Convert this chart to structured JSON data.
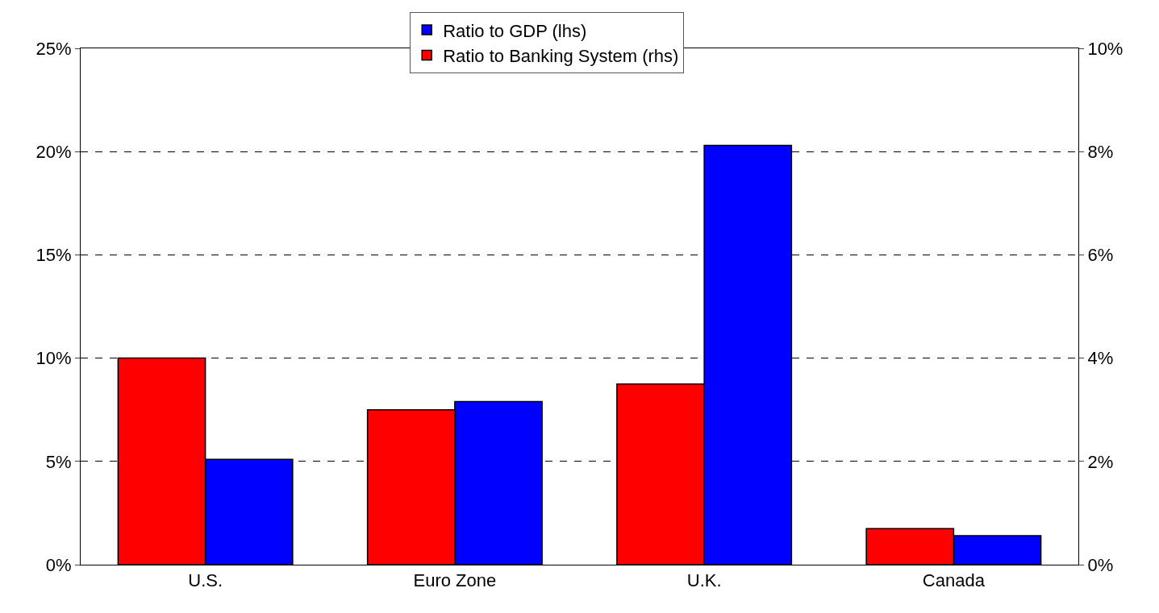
{
  "chart_data": {
    "type": "bar",
    "categories": [
      "U.S.",
      "Euro Zone",
      "U.K.",
      "Canada"
    ],
    "series": [
      {
        "name": "Ratio to GDP (lhs)",
        "color": "#0000ff",
        "values": [
          5.1,
          7.9,
          20.3,
          1.4
        ]
      },
      {
        "name": "Ratio to Banking System (rhs)",
        "color": "#ff0000",
        "values": [
          4.0,
          3.0,
          3.5,
          0.7
        ],
        "axis": "y2"
      }
    ],
    "ylim": [
      0,
      25
    ],
    "yticks": [
      {
        "value": 0,
        "label": "0%"
      },
      {
        "value": 5,
        "label": "5%"
      },
      {
        "value": 10,
        "label": "10%"
      },
      {
        "value": 15,
        "label": "15%"
      },
      {
        "value": 20,
        "label": "20%"
      },
      {
        "value": 25,
        "label": "25%"
      }
    ],
    "y2lim": [
      0,
      10
    ],
    "y2ticks": [
      {
        "value": 0,
        "label": "0%"
      },
      {
        "value": 2,
        "label": "2%"
      },
      {
        "value": 4,
        "label": "4%"
      },
      {
        "value": 6,
        "label": "6%"
      },
      {
        "value": 8,
        "label": "8%"
      },
      {
        "value": 10,
        "label": "10%"
      }
    ],
    "grid": "y",
    "legend": "top"
  }
}
